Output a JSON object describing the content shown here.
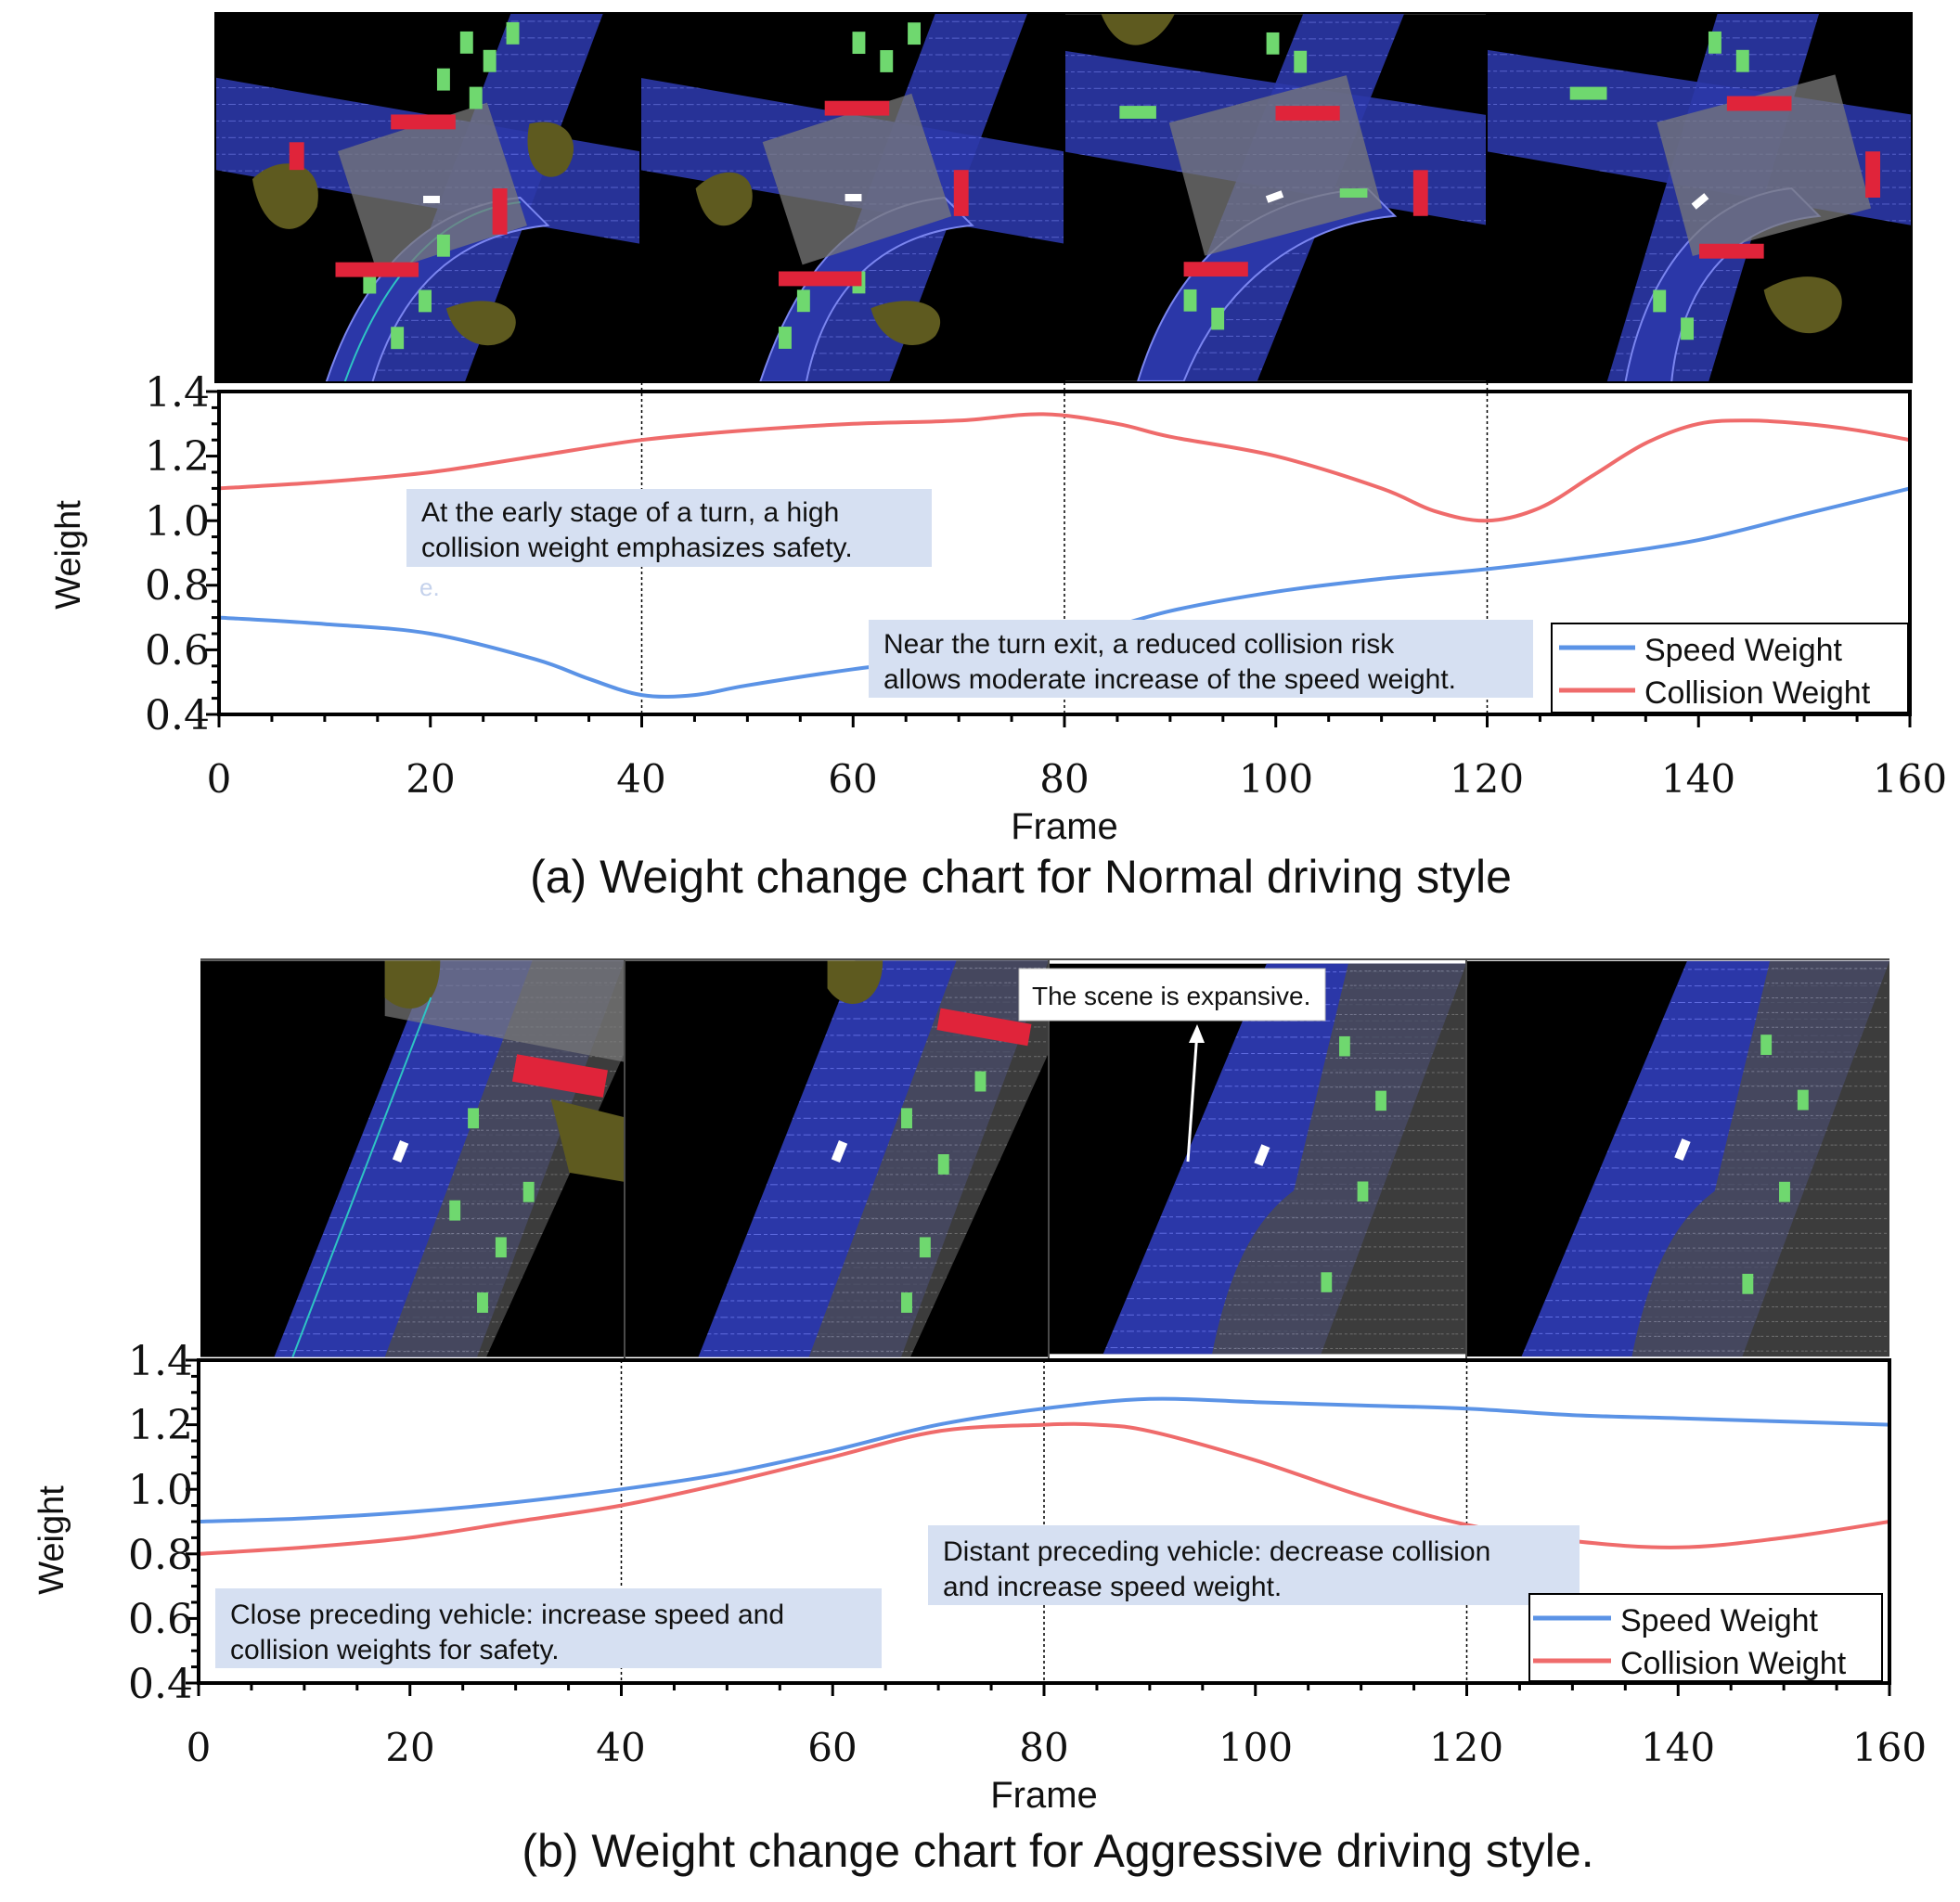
{
  "colors": {
    "speed": "#5B93E6",
    "collision": "#EF6B6B",
    "callout_bg": "#D6E0F2",
    "scene_bg": "#000000",
    "road": "#2B37A8",
    "lane_block": "#6FD86F",
    "red_block": "#E0243A",
    "grass": "#5E5A1F"
  },
  "chart_data": [
    {
      "type": "line",
      "title": "(a) Weight change chart for Normal driving style",
      "xlabel": "Frame",
      "ylabel": "Weight",
      "xlim": [
        0,
        160
      ],
      "ylim": [
        0.4,
        1.4
      ],
      "xticks": [
        "0",
        "20",
        "40",
        "60",
        "80",
        "100",
        "120",
        "140",
        "160"
      ],
      "yticks": [
        "0.4",
        "0.6",
        "0.8",
        "1.0",
        "1.2",
        "1.4"
      ],
      "vlines": [
        40,
        80,
        120
      ],
      "legend": [
        "Speed Weight",
        "Collision Weight"
      ],
      "legend_position": "lower-right",
      "series": [
        {
          "name": "Speed Weight",
          "color_key": "speed",
          "x": [
            0,
            10,
            20,
            30,
            35,
            40,
            45,
            50,
            60,
            70,
            80,
            90,
            100,
            110,
            120,
            130,
            140,
            150,
            160
          ],
          "y": [
            0.7,
            0.68,
            0.65,
            0.57,
            0.51,
            0.46,
            0.46,
            0.49,
            0.54,
            0.58,
            0.63,
            0.72,
            0.78,
            0.82,
            0.85,
            0.89,
            0.94,
            1.02,
            1.1
          ]
        },
        {
          "name": "Collision Weight",
          "color_key": "collision",
          "x": [
            0,
            10,
            20,
            30,
            40,
            50,
            60,
            70,
            78,
            85,
            90,
            100,
            110,
            115,
            120,
            125,
            130,
            135,
            140,
            145,
            150,
            155,
            160
          ],
          "y": [
            1.1,
            1.12,
            1.15,
            1.2,
            1.25,
            1.28,
            1.3,
            1.31,
            1.33,
            1.3,
            1.26,
            1.2,
            1.1,
            1.03,
            1.0,
            1.04,
            1.14,
            1.24,
            1.3,
            1.31,
            1.3,
            1.28,
            1.25
          ]
        }
      ],
      "annotations": [
        {
          "text": "At the early stage of a turn, a high collision weight emphasizes safety.",
          "line1": "At the early stage of a turn, a high",
          "line2": "collision weight emphasizes safety.",
          "extra": "e."
        },
        {
          "text": "Near the turn exit, a reduced collision risk allows moderate increase of the speed weight.",
          "line1": "Near the turn exit, a reduced collision risk",
          "line2": "allows moderate increase of the speed weight."
        }
      ]
    },
    {
      "type": "line",
      "title": "(b) Weight change chart for Aggressive driving style.",
      "xlabel": "Frame",
      "ylabel": "Weight",
      "xlim": [
        0,
        160
      ],
      "ylim": [
        0.4,
        1.4
      ],
      "xticks": [
        "0",
        "20",
        "40",
        "60",
        "80",
        "100",
        "120",
        "140",
        "160"
      ],
      "yticks": [
        "0.4",
        "0.6",
        "0.8",
        "1.0",
        "1.2",
        "1.4"
      ],
      "vlines": [
        40,
        80,
        120
      ],
      "legend": [
        "Speed Weight",
        "Collision Weight"
      ],
      "legend_position": "lower-right",
      "series": [
        {
          "name": "Speed Weight",
          "color_key": "speed",
          "x": [
            0,
            10,
            20,
            30,
            40,
            50,
            60,
            70,
            80,
            90,
            100,
            110,
            120,
            130,
            140,
            150,
            160
          ],
          "y": [
            0.9,
            0.91,
            0.93,
            0.96,
            1.0,
            1.05,
            1.12,
            1.2,
            1.25,
            1.28,
            1.27,
            1.26,
            1.25,
            1.23,
            1.22,
            1.21,
            1.2
          ]
        },
        {
          "name": "Collision Weight",
          "color_key": "collision",
          "x": [
            0,
            10,
            20,
            30,
            40,
            50,
            60,
            70,
            80,
            85,
            90,
            100,
            110,
            120,
            130,
            140,
            150,
            160
          ],
          "y": [
            0.8,
            0.82,
            0.85,
            0.9,
            0.95,
            1.02,
            1.1,
            1.18,
            1.2,
            1.2,
            1.18,
            1.09,
            0.98,
            0.89,
            0.84,
            0.82,
            0.85,
            0.9
          ]
        }
      ],
      "annotations": [
        {
          "text": "Close preceding vehicle: increase speed and collision weights for safety.",
          "line1": "Close preceding vehicle: increase speed and",
          "line2": "collision weights for safety."
        },
        {
          "text": "Distant preceding vehicle: decrease collision and increase speed weight.",
          "line1": "Distant preceding vehicle: decrease collision",
          "line2": "and increase speed weight."
        },
        {
          "text": "The scene is expansive."
        }
      ]
    }
  ]
}
